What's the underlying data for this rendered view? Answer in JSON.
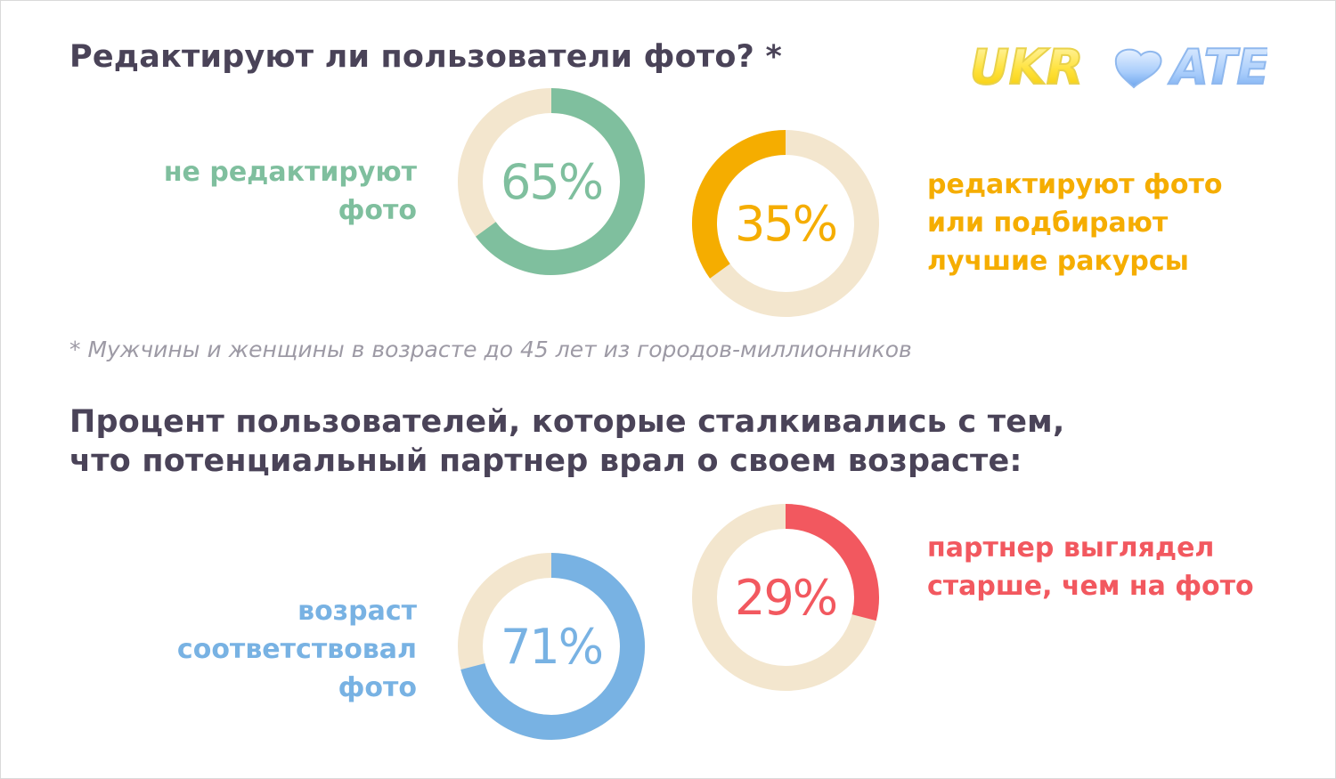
{
  "page": {
    "heading1": "Редактируют ли пользователи фото? *",
    "heading2_lines": [
      "Процент пользователей, которые сталкивались с тем,",
      "что потенциальный партнер врал о своем возрасте:"
    ],
    "footnote": "* Мужчины и женщины в возрасте до 45 лет из городов-миллионников",
    "logo_text": "UKRDATE",
    "colors": {
      "heading": "#4a4358",
      "ring_track": "#f3e6ce",
      "green": "#7fbf9e",
      "orange": "#f5ad00",
      "blue": "#78b2e3",
      "red": "#f2585f"
    }
  },
  "chart_data": [
    {
      "type": "pie",
      "chart_title": "Редактируют ли пользователи фото? *",
      "value_percent": 65,
      "value_label": "65%",
      "label_lines": [
        "не редактируют",
        "фото"
      ],
      "color": "#7fbf9e"
    },
    {
      "type": "pie",
      "chart_title": "Редактируют ли пользователи фото? *",
      "value_percent": 35,
      "value_label": "35%",
      "label_lines": [
        "редактируют фото",
        "или подбирают",
        "лучшие ракурсы"
      ],
      "color": "#f5ad00"
    },
    {
      "type": "pie",
      "chart_title": "Процент пользователей, которые сталкивались с тем, что потенциальный партнер врал о своем возрасте:",
      "value_percent": 71,
      "value_label": "71%",
      "label_lines": [
        "возраст",
        "соответствовал",
        "фото"
      ],
      "color": "#78b2e3"
    },
    {
      "type": "pie",
      "chart_title": "Процент пользователей, которые сталкивались с тем, что потенциальный партнер врал о своем возрасте:",
      "value_percent": 29,
      "value_label": "29%",
      "label_lines": [
        "партнер выглядел",
        "старше, чем на фото"
      ],
      "color": "#f2585f"
    }
  ]
}
